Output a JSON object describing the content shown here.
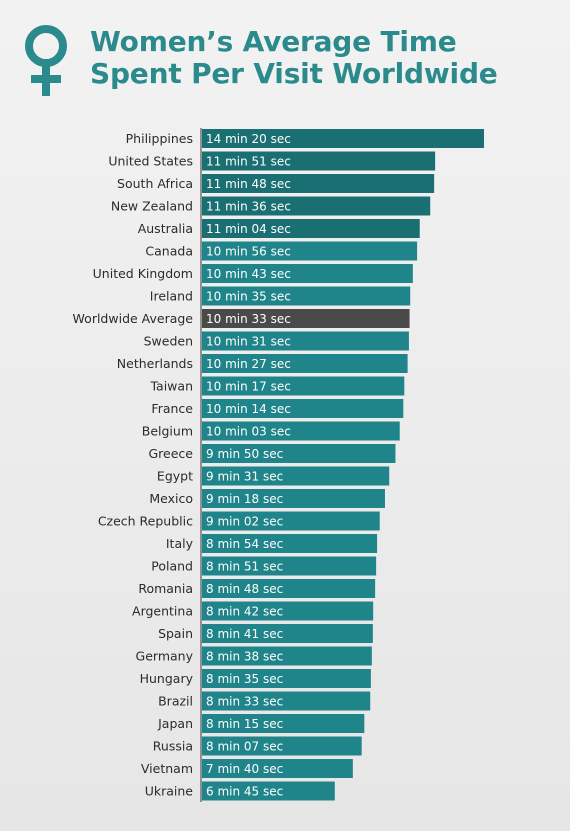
{
  "header": {
    "title_line1": "Women’s Average Time",
    "title_line2": "Spent Per Visit Worldwide",
    "icon": "female-symbol-icon",
    "accent_color": "#2a8a8c"
  },
  "chart_data": {
    "type": "bar",
    "orientation": "horizontal",
    "title": "Women’s Average Time Spent Per Visit Worldwide",
    "value_unit": "seconds",
    "xlim": [
      0,
      880
    ],
    "grid": false,
    "legend": "none",
    "colors": {
      "bar": "#20858a",
      "bar_dark": "#1a6f73",
      "highlight": "#4a4a4a"
    },
    "categories": [
      "Philippines",
      "United States",
      "South Africa",
      "New Zealand",
      "Australia",
      "Canada",
      "United Kingdom",
      "Ireland",
      "Worldwide Average",
      "Sweden",
      "Netherlands",
      "Taiwan",
      "France",
      "Belgium",
      "Greece",
      "Egypt",
      "Mexico",
      "Czech Republic",
      "Italy",
      "Poland",
      "Romania",
      "Argentina",
      "Spain",
      "Germany",
      "Hungary",
      "Brazil",
      "Japan",
      "Russia",
      "Vietnam",
      "Ukraine"
    ],
    "values": [
      860,
      711,
      708,
      696,
      664,
      656,
      643,
      635,
      633,
      631,
      627,
      617,
      614,
      603,
      590,
      571,
      558,
      542,
      534,
      531,
      528,
      522,
      521,
      518,
      515,
      513,
      495,
      487,
      460,
      405
    ],
    "labels": [
      "14 min 20 sec",
      "11 min 51 sec",
      "11 min 48 sec",
      "11 min 36 sec",
      "11 min 04 sec",
      "10 min 56 sec",
      "10 min 43 sec",
      "10 min 35 sec",
      "10 min 33 sec",
      "10 min 31 sec",
      "10 min 27 sec",
      "10 min 17 sec",
      "10 min 14 sec",
      "10 min 03 sec",
      "9 min 50 sec",
      "9 min 31 sec",
      "9 min 18 sec",
      "9 min 02 sec",
      "8 min 54 sec",
      "8 min 51 sec",
      "8 min 48 sec",
      "8 min 42 sec",
      "8 min 41 sec",
      "8 min 38 sec",
      "8 min 35 sec",
      "8 min 33 sec",
      "8 min 15 sec",
      "8 min 07 sec",
      "7 min 40 sec",
      "6 min 45 sec"
    ],
    "highlight_category": "Worldwide Average"
  }
}
